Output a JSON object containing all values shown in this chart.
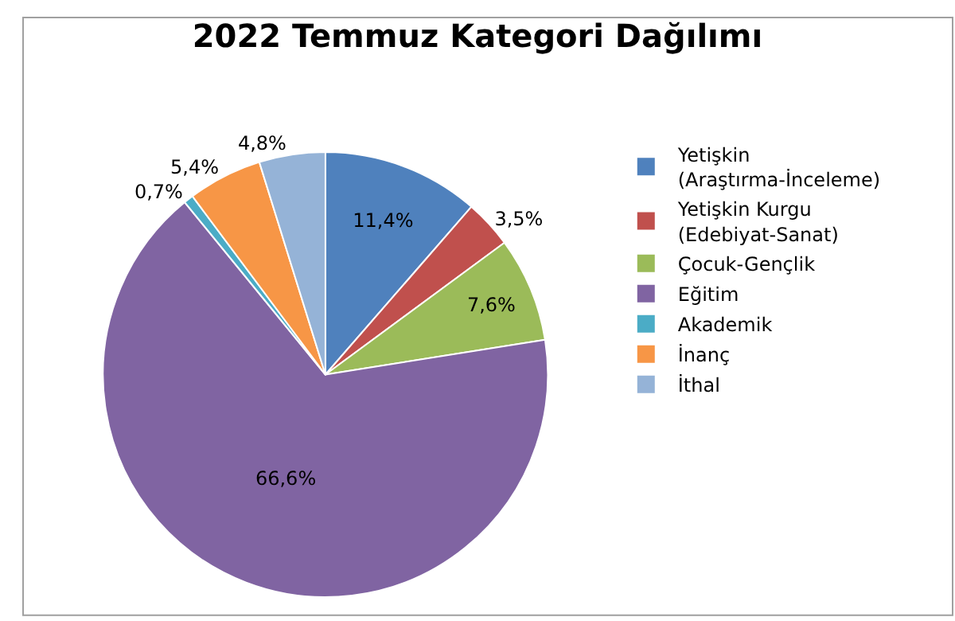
{
  "chart_data": {
    "type": "pie",
    "title": "2022 Temmuz Kategori Dağılımı",
    "categories": [
      "Yetişkin (Araştırma-İnceleme)",
      "Yetişkin Kurgu (Edebiyat-Sanat)",
      "Çocuk-Gençlik",
      "Eğitim",
      "Akademik",
      "İnanç",
      "İthal"
    ],
    "values": [
      11.4,
      3.5,
      7.6,
      66.6,
      0.7,
      5.4,
      4.8
    ],
    "value_labels": [
      "11,4%",
      "3,5%",
      "7,6%",
      "66,6%",
      "0,7%",
      "5,4%",
      "4,8%"
    ],
    "colors": [
      "#4f81bd",
      "#c0504d",
      "#9bbb59",
      "#8064a2",
      "#4bacc6",
      "#f79646",
      "#95b3d7"
    ],
    "legend": "right"
  }
}
